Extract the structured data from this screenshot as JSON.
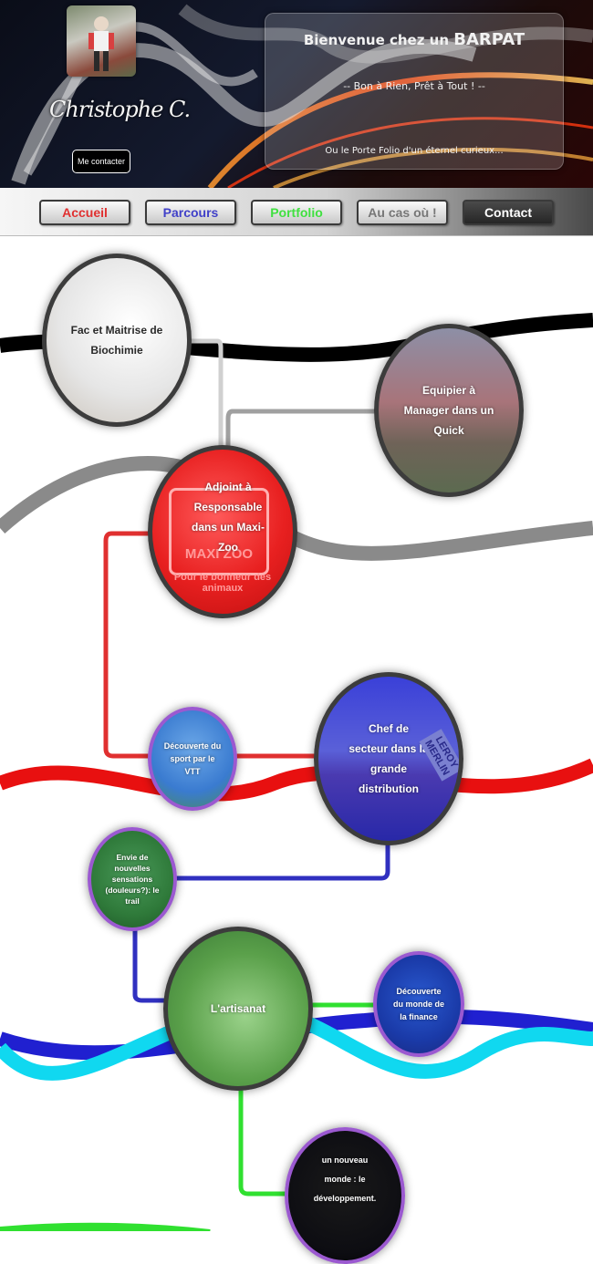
{
  "header": {
    "signature": "Christophe C.",
    "contact_button": "Me contacter",
    "welcome_prefix": "Bienvenue chez un ",
    "welcome_brand": "BARPAT",
    "motto": "-- Bon à Rien, Prêt à Tout ! --",
    "tagline": "Ou le Porte Folio d'un éternel curieux..."
  },
  "nav": {
    "items": [
      {
        "label": "Accueil",
        "color": "#e03030"
      },
      {
        "label": "Parcours",
        "color": "#4040c8"
      },
      {
        "label": "Portfolio",
        "color": "#40e040"
      },
      {
        "label": "Au cas où !",
        "color": "#777777"
      },
      {
        "label": "Contact",
        "color": "#ffffff"
      }
    ]
  },
  "timeline": {
    "nodes": [
      {
        "label": "Fac et Maitrise de Biochimie"
      },
      {
        "label": "Equipier à Manager dans un Quick"
      },
      {
        "label": "Adjoint à Responsable dans un Maxi-Zoo",
        "image_text": "MAXI ZOO",
        "image_caption": "Pour le bonheur des animaux"
      },
      {
        "label": "Découverte du sport par le VTT"
      },
      {
        "label": "Chef de secteur dans la grande distribution",
        "image_text": "LEROY MERLIN"
      },
      {
        "label": "Envie de nouvelles sensations (douleurs?): le trail"
      },
      {
        "label": "L'artisanat"
      },
      {
        "label": "Découverte du monde de la finance"
      },
      {
        "label": "un nouveau monde : le développement."
      }
    ],
    "colors": {
      "black": "#000000",
      "grey": "#8a8a8a",
      "red": "#e81010",
      "blue": "#2020d0",
      "cyan": "#10d8f0",
      "green": "#30e030",
      "purple_border": "#9b59d0"
    }
  }
}
